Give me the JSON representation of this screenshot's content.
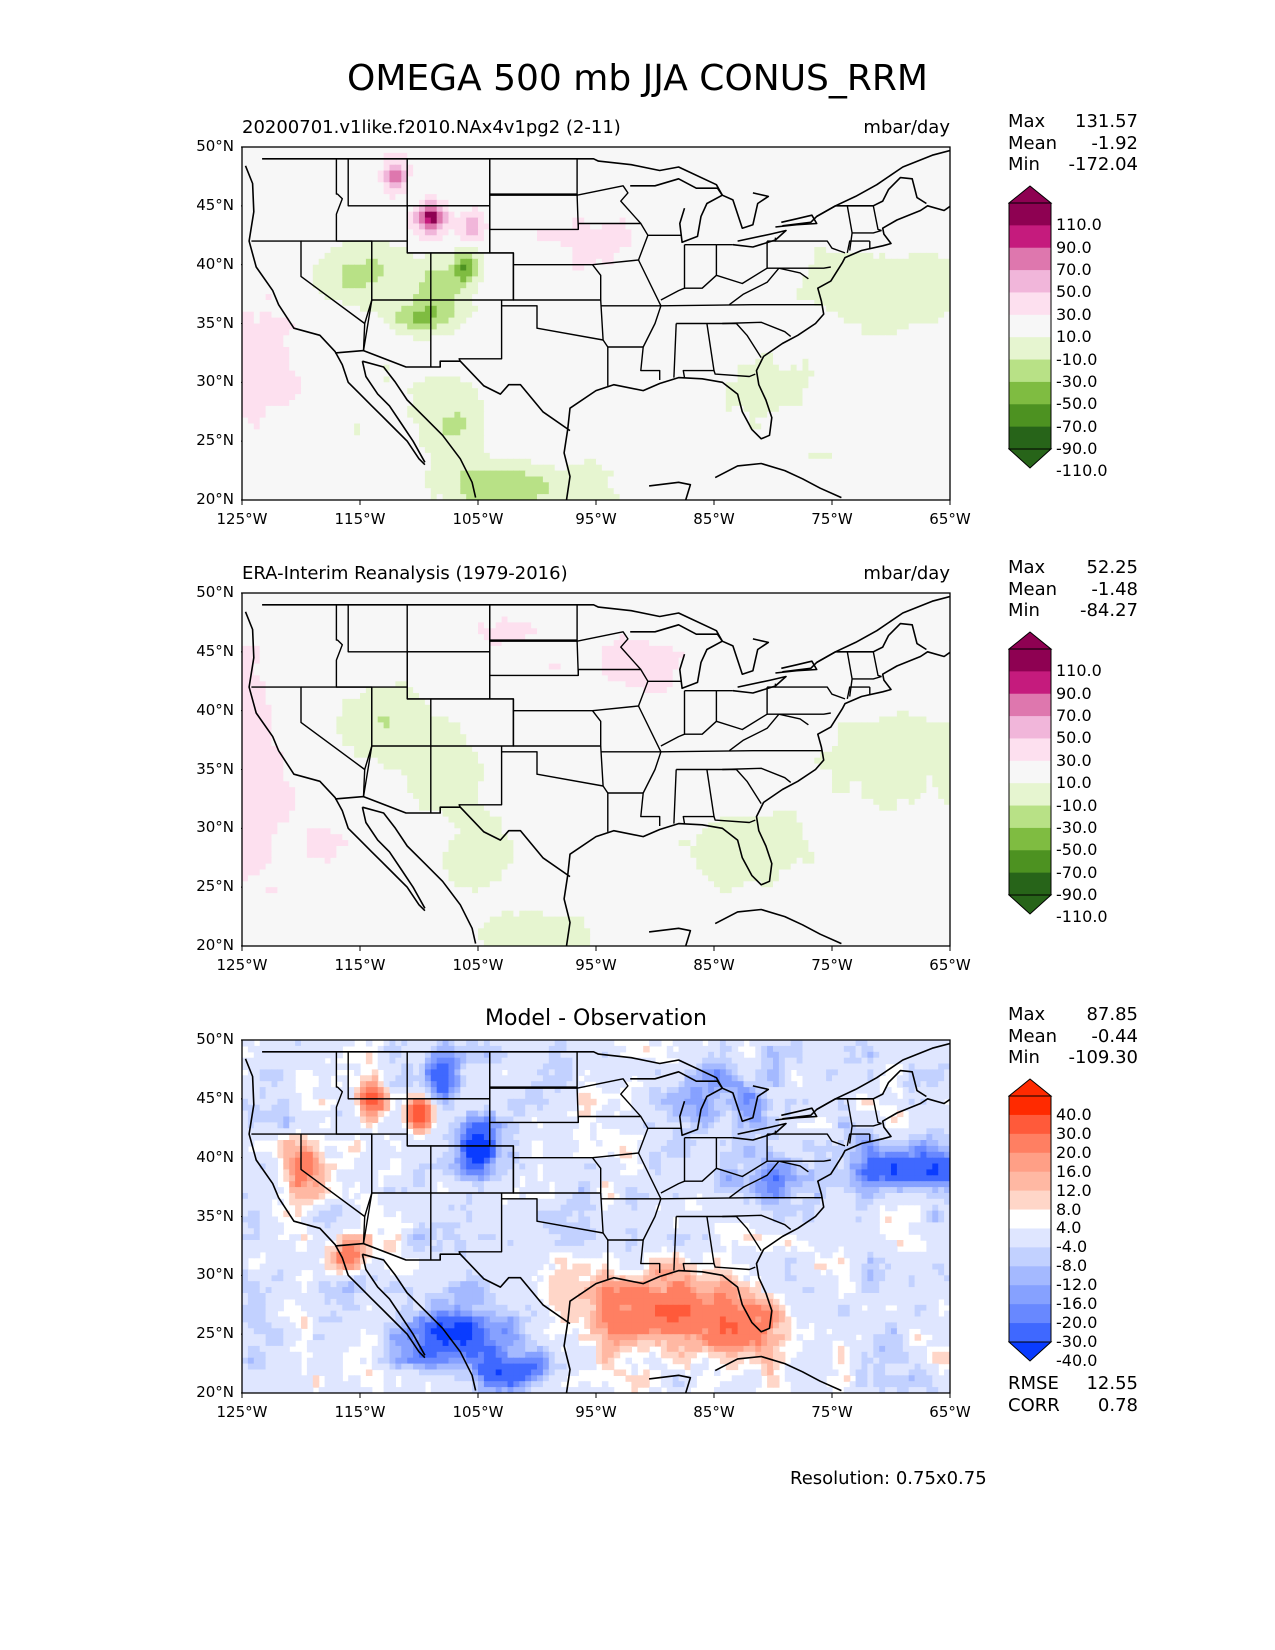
{
  "title": "OMEGA 500 mb JJA CONUS_RRM",
  "footer": "Resolution: 0.75x0.75",
  "panels": [
    {
      "left_title": "20200701.v1like.f2010.NAx4v1pg2 (2-11)",
      "right_title": "mbar/day",
      "center_title": "",
      "stats": [
        {
          "label": "Max",
          "value": "131.57"
        },
        {
          "label": "Mean",
          "value": "-1.92"
        },
        {
          "label": "Min",
          "value": "-172.04"
        }
      ],
      "extra_stats": [],
      "colorbar_labels": [
        "110.0",
        "90.0",
        "70.0",
        "50.0",
        "30.0",
        "10.0",
        "-10.0",
        "-30.0",
        "-50.0",
        "-70.0",
        "-90.0",
        "-110.0"
      ]
    },
    {
      "left_title": "ERA-Interim Reanalysis (1979-2016)",
      "right_title": "mbar/day",
      "center_title": "",
      "stats": [
        {
          "label": "Max",
          "value": "52.25"
        },
        {
          "label": "Mean",
          "value": "-1.48"
        },
        {
          "label": "Min",
          "value": "-84.27"
        }
      ],
      "extra_stats": [],
      "colorbar_labels": [
        "110.0",
        "90.0",
        "70.0",
        "50.0",
        "30.0",
        "10.0",
        "-10.0",
        "-30.0",
        "-50.0",
        "-70.0",
        "-90.0",
        "-110.0"
      ]
    },
    {
      "left_title": "",
      "right_title": "",
      "center_title": "Model - Observation",
      "stats": [
        {
          "label": "Max",
          "value": "87.85"
        },
        {
          "label": "Mean",
          "value": "-0.44"
        },
        {
          "label": "Min",
          "value": "-109.30"
        }
      ],
      "extra_stats": [
        {
          "label": "RMSE",
          "value": "12.55"
        },
        {
          "label": "CORR",
          "value": "0.78"
        }
      ],
      "colorbar_labels": [
        "40.0",
        "30.0",
        "20.0",
        "16.0",
        "12.0",
        "8.0",
        "4.0",
        "-4.0",
        "-8.0",
        "-12.0",
        "-16.0",
        "-20.0",
        "-30.0",
        "-40.0"
      ]
    }
  ],
  "axes": {
    "lat_ticks": [
      "50°N",
      "45°N",
      "40°N",
      "35°N",
      "30°N",
      "25°N",
      "20°N"
    ],
    "lon_ticks": [
      "125°W",
      "115°W",
      "105°W",
      "95°W",
      "85°W",
      "75°W",
      "65°W"
    ]
  },
  "colors": {
    "field_cmap": [
      "#8e0152",
      "#c51b7d",
      "#de77ae",
      "#f1b6da",
      "#fde0ef",
      "#f7f7f7",
      "#e6f5d0",
      "#b8e186",
      "#7fbc41",
      "#4d9221",
      "#276419"
    ],
    "diff_cmap": [
      "#ff2a00",
      "#ff5a3a",
      "#ff7f62",
      "#ff9f86",
      "#ffc0ad",
      "#ffe0d5",
      "#ffffff",
      "#dfe6ff",
      "#c2d1ff",
      "#a4b9ff",
      "#86a1ff",
      "#6888ff",
      "#3f68ff",
      "#0a3cff"
    ]
  },
  "chart_data": [
    {
      "type": "heatmap",
      "title": "20200701.v1like.f2010.NAx4v1pg2 (2-11)",
      "units": "mbar/day",
      "xlim": [
        -125,
        -65
      ],
      "ylim": [
        20,
        50
      ],
      "x_ticks": [
        -125,
        -115,
        -105,
        -95,
        -85,
        -75,
        -65
      ],
      "y_ticks": [
        20,
        25,
        30,
        35,
        40,
        45,
        50
      ],
      "contour_levels": [
        -110,
        -90,
        -70,
        -50,
        -30,
        -10,
        10,
        30,
        50,
        70,
        90,
        110
      ],
      "max": 131.57,
      "mean": -1.92,
      "min": -172.04
    },
    {
      "type": "heatmap",
      "title": "ERA-Interim Reanalysis (1979-2016)",
      "units": "mbar/day",
      "xlim": [
        -125,
        -65
      ],
      "ylim": [
        20,
        50
      ],
      "x_ticks": [
        -125,
        -115,
        -105,
        -95,
        -85,
        -75,
        -65
      ],
      "y_ticks": [
        20,
        25,
        30,
        35,
        40,
        45,
        50
      ],
      "contour_levels": [
        -110,
        -90,
        -70,
        -50,
        -30,
        -10,
        10,
        30,
        50,
        70,
        90,
        110
      ],
      "max": 52.25,
      "mean": -1.48,
      "min": -84.27
    },
    {
      "type": "heatmap",
      "title": "Model - Observation",
      "xlim": [
        -125,
        -65
      ],
      "ylim": [
        20,
        50
      ],
      "x_ticks": [
        -125,
        -115,
        -105,
        -95,
        -85,
        -75,
        -65
      ],
      "y_ticks": [
        20,
        25,
        30,
        35,
        40,
        45,
        50
      ],
      "contour_levels": [
        -40,
        -30,
        -20,
        -16,
        -12,
        -8,
        -4,
        4,
        8,
        12,
        16,
        20,
        30,
        40
      ],
      "max": 87.85,
      "mean": -0.44,
      "min": -109.3,
      "rmse": 12.55,
      "corr": 0.78
    }
  ]
}
